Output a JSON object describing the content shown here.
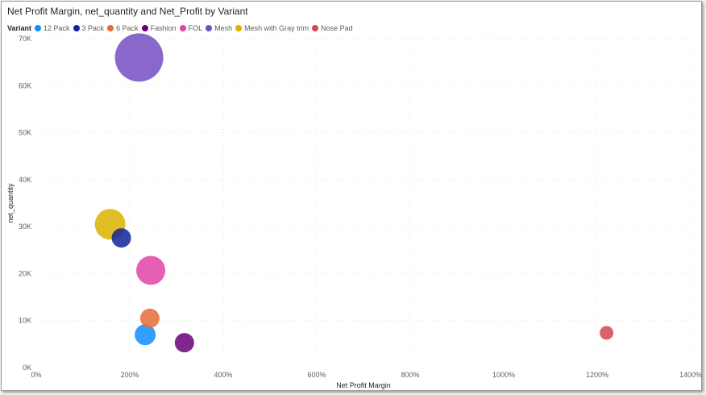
{
  "chart_data": {
    "type": "scatter",
    "title": "Net Profit Margin, net_quantity and Net_Profit by Variant",
    "xlabel": "Net Profit Margin",
    "ylabel": "net_quantity",
    "legend_title": "Variant",
    "legend_position": "top-left",
    "xlim": [
      0,
      1400
    ],
    "ylim": [
      0,
      70000
    ],
    "x_ticks": [
      "0%",
      "200%",
      "400%",
      "600%",
      "800%",
      "1000%",
      "1200%",
      "1400%"
    ],
    "y_ticks": [
      "0K",
      "10K",
      "20K",
      "30K",
      "40K",
      "50K",
      "60K",
      "70K"
    ],
    "grid": true,
    "series": [
      {
        "name": "12 Pack",
        "color": "#118DFF",
        "x": 233,
        "y": 7000,
        "size": 13
      },
      {
        "name": "3 Pack",
        "color": "#12239E",
        "x": 182,
        "y": 27600,
        "size": 12
      },
      {
        "name": "6 Pack",
        "color": "#E66C37",
        "x": 243,
        "y": 10500,
        "size": 12
      },
      {
        "name": "Fashion",
        "color": "#6B007B",
        "x": 317,
        "y": 5300,
        "size": 12
      },
      {
        "name": "FOL",
        "color": "#E044A7",
        "x": 245,
        "y": 20700,
        "size": 18
      },
      {
        "name": "Mesh",
        "color": "#744EC2",
        "x": 220,
        "y": 66000,
        "size": 30
      },
      {
        "name": "Mesh with Gray trim",
        "color": "#D9B300",
        "x": 158,
        "y": 30500,
        "size": 19
      },
      {
        "name": "Nose Pad",
        "color": "#D64550",
        "x": 1220,
        "y": 7400,
        "size": 8.5
      }
    ]
  }
}
